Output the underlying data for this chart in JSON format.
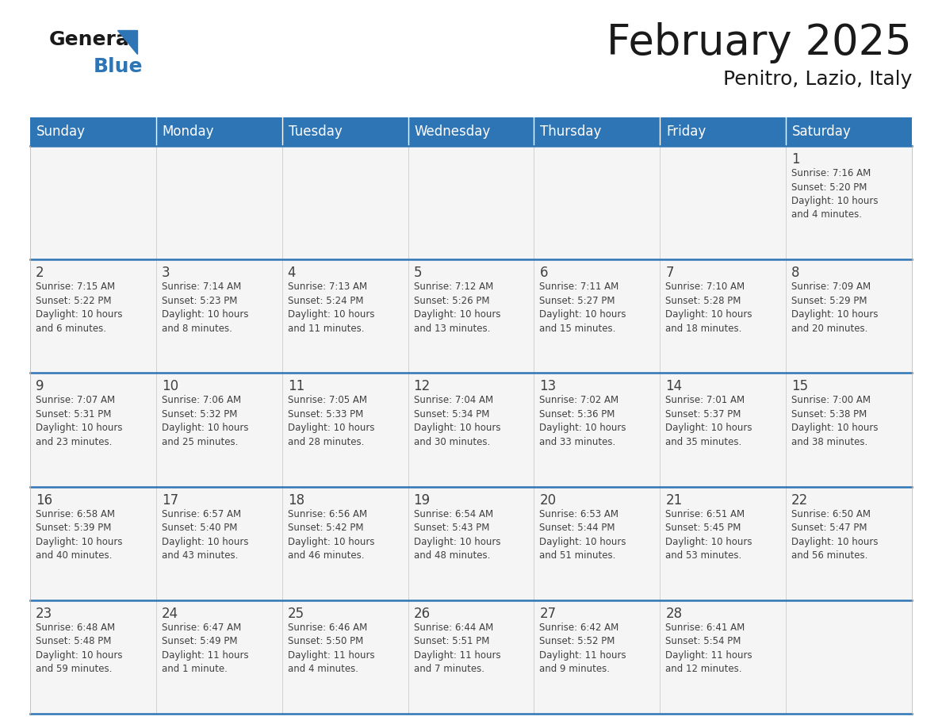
{
  "title": "February 2025",
  "subtitle": "Penitro, Lazio, Italy",
  "header_bg": "#2E75B6",
  "header_text_color": "#FFFFFF",
  "border_color": "#2E75B6",
  "text_color": "#404040",
  "dark_text": "#1a1a1a",
  "cell_bg": "#F5F5F5",
  "days_of_week": [
    "Sunday",
    "Monday",
    "Tuesday",
    "Wednesday",
    "Thursday",
    "Friday",
    "Saturday"
  ],
  "calendar": [
    [
      {
        "day": null,
        "info": ""
      },
      {
        "day": null,
        "info": ""
      },
      {
        "day": null,
        "info": ""
      },
      {
        "day": null,
        "info": ""
      },
      {
        "day": null,
        "info": ""
      },
      {
        "day": null,
        "info": ""
      },
      {
        "day": 1,
        "info": "Sunrise: 7:16 AM\nSunset: 5:20 PM\nDaylight: 10 hours\nand 4 minutes."
      }
    ],
    [
      {
        "day": 2,
        "info": "Sunrise: 7:15 AM\nSunset: 5:22 PM\nDaylight: 10 hours\nand 6 minutes."
      },
      {
        "day": 3,
        "info": "Sunrise: 7:14 AM\nSunset: 5:23 PM\nDaylight: 10 hours\nand 8 minutes."
      },
      {
        "day": 4,
        "info": "Sunrise: 7:13 AM\nSunset: 5:24 PM\nDaylight: 10 hours\nand 11 minutes."
      },
      {
        "day": 5,
        "info": "Sunrise: 7:12 AM\nSunset: 5:26 PM\nDaylight: 10 hours\nand 13 minutes."
      },
      {
        "day": 6,
        "info": "Sunrise: 7:11 AM\nSunset: 5:27 PM\nDaylight: 10 hours\nand 15 minutes."
      },
      {
        "day": 7,
        "info": "Sunrise: 7:10 AM\nSunset: 5:28 PM\nDaylight: 10 hours\nand 18 minutes."
      },
      {
        "day": 8,
        "info": "Sunrise: 7:09 AM\nSunset: 5:29 PM\nDaylight: 10 hours\nand 20 minutes."
      }
    ],
    [
      {
        "day": 9,
        "info": "Sunrise: 7:07 AM\nSunset: 5:31 PM\nDaylight: 10 hours\nand 23 minutes."
      },
      {
        "day": 10,
        "info": "Sunrise: 7:06 AM\nSunset: 5:32 PM\nDaylight: 10 hours\nand 25 minutes."
      },
      {
        "day": 11,
        "info": "Sunrise: 7:05 AM\nSunset: 5:33 PM\nDaylight: 10 hours\nand 28 minutes."
      },
      {
        "day": 12,
        "info": "Sunrise: 7:04 AM\nSunset: 5:34 PM\nDaylight: 10 hours\nand 30 minutes."
      },
      {
        "day": 13,
        "info": "Sunrise: 7:02 AM\nSunset: 5:36 PM\nDaylight: 10 hours\nand 33 minutes."
      },
      {
        "day": 14,
        "info": "Sunrise: 7:01 AM\nSunset: 5:37 PM\nDaylight: 10 hours\nand 35 minutes."
      },
      {
        "day": 15,
        "info": "Sunrise: 7:00 AM\nSunset: 5:38 PM\nDaylight: 10 hours\nand 38 minutes."
      }
    ],
    [
      {
        "day": 16,
        "info": "Sunrise: 6:58 AM\nSunset: 5:39 PM\nDaylight: 10 hours\nand 40 minutes."
      },
      {
        "day": 17,
        "info": "Sunrise: 6:57 AM\nSunset: 5:40 PM\nDaylight: 10 hours\nand 43 minutes."
      },
      {
        "day": 18,
        "info": "Sunrise: 6:56 AM\nSunset: 5:42 PM\nDaylight: 10 hours\nand 46 minutes."
      },
      {
        "day": 19,
        "info": "Sunrise: 6:54 AM\nSunset: 5:43 PM\nDaylight: 10 hours\nand 48 minutes."
      },
      {
        "day": 20,
        "info": "Sunrise: 6:53 AM\nSunset: 5:44 PM\nDaylight: 10 hours\nand 51 minutes."
      },
      {
        "day": 21,
        "info": "Sunrise: 6:51 AM\nSunset: 5:45 PM\nDaylight: 10 hours\nand 53 minutes."
      },
      {
        "day": 22,
        "info": "Sunrise: 6:50 AM\nSunset: 5:47 PM\nDaylight: 10 hours\nand 56 minutes."
      }
    ],
    [
      {
        "day": 23,
        "info": "Sunrise: 6:48 AM\nSunset: 5:48 PM\nDaylight: 10 hours\nand 59 minutes."
      },
      {
        "day": 24,
        "info": "Sunrise: 6:47 AM\nSunset: 5:49 PM\nDaylight: 11 hours\nand 1 minute."
      },
      {
        "day": 25,
        "info": "Sunrise: 6:46 AM\nSunset: 5:50 PM\nDaylight: 11 hours\nand 4 minutes."
      },
      {
        "day": 26,
        "info": "Sunrise: 6:44 AM\nSunset: 5:51 PM\nDaylight: 11 hours\nand 7 minutes."
      },
      {
        "day": 27,
        "info": "Sunrise: 6:42 AM\nSunset: 5:52 PM\nDaylight: 11 hours\nand 9 minutes."
      },
      {
        "day": 28,
        "info": "Sunrise: 6:41 AM\nSunset: 5:54 PM\nDaylight: 11 hours\nand 12 minutes."
      },
      {
        "day": null,
        "info": ""
      }
    ]
  ]
}
